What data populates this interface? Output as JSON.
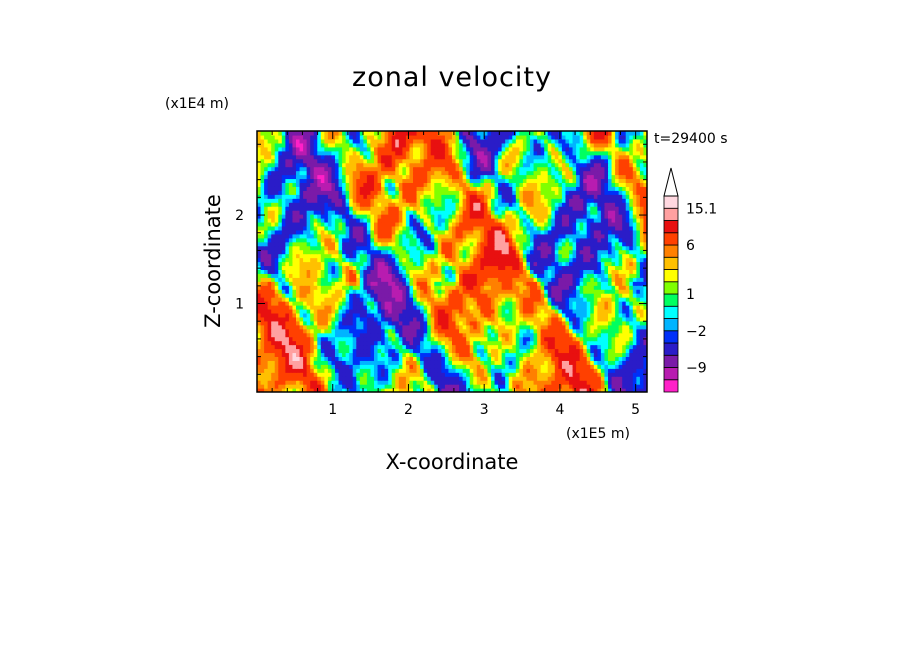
{
  "chart_data": {
    "type": "heatmap",
    "title": "zonal velocity",
    "xlabel": "X-coordinate",
    "ylabel": "Z-coordinate",
    "x_unit": "(x1E5 m)",
    "y_unit": "(x1E4 m)",
    "time_label": "t=29400 s",
    "xlim": [
      0,
      5.15
    ],
    "ylim": [
      0,
      2.95
    ],
    "x_ticks": [
      1,
      2,
      3,
      4,
      5
    ],
    "y_ticks": [
      1,
      2
    ],
    "colorbar": {
      "levels": [
        -15,
        -12,
        -9,
        -6,
        -3,
        -2,
        -1,
        0,
        1,
        2,
        3,
        4.5,
        6,
        9,
        12,
        15.1
      ],
      "labels": [
        "15.1",
        "6",
        "1",
        "-2",
        "-9"
      ],
      "colors": [
        "#ff20c8",
        "#b81cb0",
        "#7a1aa8",
        "#2a1cc8",
        "#0030f8",
        "#00b4ff",
        "#00ffff",
        "#00ff60",
        "#80ff00",
        "#ffff00",
        "#ffc000",
        "#ff8000",
        "#ff4000",
        "#e81010",
        "#ffa0a0",
        "#ffd8e0"
      ],
      "extend_max": true
    }
  }
}
